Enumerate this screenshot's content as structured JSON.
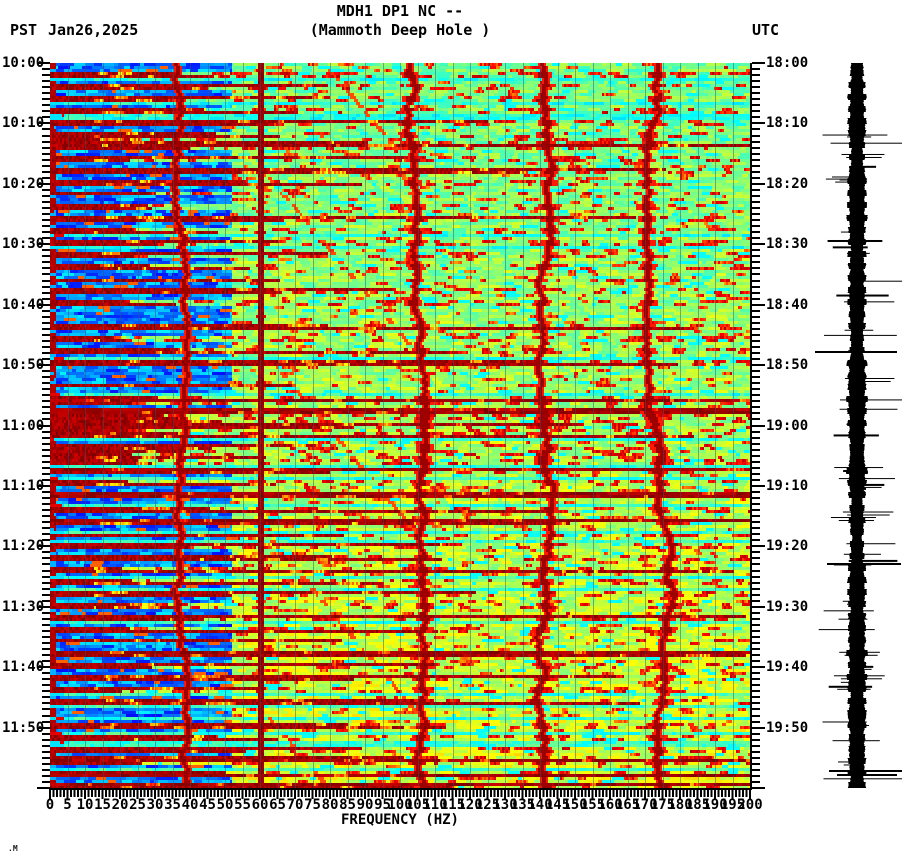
{
  "header": {
    "title": "MDH1 DP1 NC --",
    "subtitle": "(Mammoth Deep Hole )",
    "timezone_left": "PST",
    "date": "Jan26,2025",
    "timezone_right": "UTC"
  },
  "axes": {
    "xlabel": "FREQUENCY (HZ)",
    "left_time_labels": [
      "10:00",
      "10:10",
      "10:20",
      "10:30",
      "10:40",
      "10:50",
      "11:00",
      "11:10",
      "11:20",
      "11:30",
      "11:40",
      "11:50"
    ],
    "right_time_labels": [
      "18:00",
      "18:10",
      "18:20",
      "18:30",
      "18:40",
      "18:50",
      "19:00",
      "19:10",
      "19:20",
      "19:30",
      "19:40",
      "19:50"
    ],
    "freq_tick_labels": [
      "0",
      "5",
      "10",
      "15",
      "20",
      "25",
      "30",
      "35",
      "40",
      "45",
      "50",
      "55",
      "60",
      "65",
      "70",
      "75",
      "80",
      "85",
      "90",
      "95",
      "100",
      "105",
      "110",
      "115",
      "120",
      "125",
      "130",
      "135",
      "140",
      "145",
      "150",
      "155",
      "160",
      "165",
      "170",
      "175",
      "180",
      "185",
      "190",
      "195",
      "200"
    ]
  },
  "watermark": ".M",
  "chart_data": {
    "type": "heatmap",
    "subtype": "seismic-spectrogram",
    "station": "MDH1 DP1 NC --",
    "station_name": "Mammoth Deep Hole",
    "title": "MDH1 DP1 NC --",
    "x_axis": {
      "label": "FREQUENCY (HZ)",
      "min_hz": 0,
      "max_hz": 200,
      "label_step_hz": 5,
      "minor_tick_hz": 1
    },
    "y_axis_left": {
      "timezone": "PST",
      "date": "Jan26,2025",
      "start": "10:00",
      "end": "12:00",
      "label_step_min": 10,
      "minor_tick_min": 1
    },
    "y_axis_right": {
      "timezone": "UTC",
      "start": "18:00",
      "end": "20:00",
      "label_step_min": 10,
      "minor_tick_min": 1
    },
    "duration_minutes": 120,
    "colormap": "jet",
    "palette": {
      "quiet_low_freq": "#1a66dd",
      "quiet_high_freq": "#7fe8a0",
      "moderate": "#ffee00",
      "strong": "#dd2200",
      "saturated": "#8b0000",
      "gridline": "rgba(60,80,110,0.5)"
    },
    "gridline_step_hz": 5,
    "features": {
      "mains_hum_line_hz": 60,
      "harmonic_wiggly_traces_hz": [
        35,
        103,
        140,
        174
      ],
      "sweep_band_hz": [
        62,
        104
      ],
      "event_rows": "alternating ~1-minute broadband bursts, dark-red saturated from 0 Hz up to a variable cutoff, some spanning full 0-200 Hz",
      "quiet_rows": "blue/cyan below ~50 Hz, cyan-green to yellow mottle above",
      "warming_trend": "background grows yellower toward later times",
      "busy_interval_pst": "10:55-11:15",
      "render_seed": 1234567
    },
    "waveform_panel": {
      "position": "right of spectrogram",
      "content": "vertical black seismogram trace for same 2-hour window",
      "appearance": "dense solid band with impulsive horizontal spike excursions at event times",
      "color": "#000000"
    }
  }
}
